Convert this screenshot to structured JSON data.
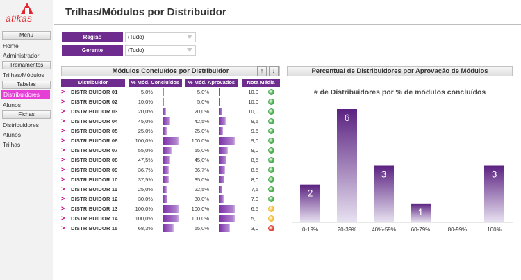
{
  "app": {
    "logo_text": "atikas",
    "title": "Trilhas/Módulos por Distribuidor"
  },
  "sidebar": {
    "menu_header": "Menu",
    "menu_items": [
      "Home",
      "Administrador"
    ],
    "treinamentos_header": "Treinamentos",
    "treinamentos_items": [
      "Trilhas/Módulos"
    ],
    "tabelas_header": "Tabelas",
    "tabelas_items": [
      "Distribuidores",
      "Alunos"
    ],
    "fichas_header": "Fichas",
    "fichas_items": [
      "Distribuidores",
      "Alunos",
      "Trilhas"
    ]
  },
  "filters": {
    "regiao": {
      "label": "Região",
      "value": "(Tudo)"
    },
    "gerente": {
      "label": "Gerente",
      "value": "(Tudo)"
    }
  },
  "table": {
    "title": "Módulos Concluídos por Distribuidor",
    "sort_up": "↑",
    "sort_down": "↓",
    "headers": [
      "Distribuidor",
      "% Mód. Concluídos",
      "% Mód. Aprovados",
      "Nota Média"
    ],
    "colors": {
      "green": "#4caf50",
      "yellow": "#f3c03a",
      "red": "#e0473c"
    },
    "rows": [
      {
        "name": "DISTRIBUIDOR 01",
        "concl": "5,0%",
        "concl_v": 5.0,
        "aprov": "5,0%",
        "aprov_v": 5.0,
        "nota": "10,0",
        "status": "green"
      },
      {
        "name": "DISTRIBUIDOR 02",
        "concl": "10,0%",
        "concl_v": 10.0,
        "aprov": "5,0%",
        "aprov_v": 5.0,
        "nota": "10,0",
        "status": "green"
      },
      {
        "name": "DISTRIBUIDOR 03",
        "concl": "20,0%",
        "concl_v": 20.0,
        "aprov": "20,0%",
        "aprov_v": 20.0,
        "nota": "10,0",
        "status": "green"
      },
      {
        "name": "DISTRIBUIDOR 04",
        "concl": "45,0%",
        "concl_v": 45.0,
        "aprov": "42,5%",
        "aprov_v": 42.5,
        "nota": "9,5",
        "status": "green"
      },
      {
        "name": "DISTRIBUIDOR 05",
        "concl": "25,0%",
        "concl_v": 25.0,
        "aprov": "25,0%",
        "aprov_v": 25.0,
        "nota": "9,5",
        "status": "green"
      },
      {
        "name": "DISTRIBUIDOR 06",
        "concl": "100,0%",
        "concl_v": 100.0,
        "aprov": "100,0%",
        "aprov_v": 100.0,
        "nota": "9,0",
        "status": "green"
      },
      {
        "name": "DISTRIBUIDOR 07",
        "concl": "55,0%",
        "concl_v": 55.0,
        "aprov": "55,0%",
        "aprov_v": 55.0,
        "nota": "9,0",
        "status": "green"
      },
      {
        "name": "DISTRIBUIDOR 08",
        "concl": "47,5%",
        "concl_v": 47.5,
        "aprov": "45,0%",
        "aprov_v": 45.0,
        "nota": "8,5",
        "status": "green"
      },
      {
        "name": "DISTRIBUIDOR 09",
        "concl": "36,7%",
        "concl_v": 36.7,
        "aprov": "36,7%",
        "aprov_v": 36.7,
        "nota": "8,5",
        "status": "green"
      },
      {
        "name": "DISTRIBUIDOR 10",
        "concl": "37,5%",
        "concl_v": 37.5,
        "aprov": "35,0%",
        "aprov_v": 35.0,
        "nota": "8,0",
        "status": "green"
      },
      {
        "name": "DISTRIBUIDOR 11",
        "concl": "25,0%",
        "concl_v": 25.0,
        "aprov": "22,5%",
        "aprov_v": 22.5,
        "nota": "7,5",
        "status": "green"
      },
      {
        "name": "DISTRIBUIDOR 12",
        "concl": "30,0%",
        "concl_v": 30.0,
        "aprov": "30,0%",
        "aprov_v": 30.0,
        "nota": "7,0",
        "status": "green"
      },
      {
        "name": "DISTRIBUIDOR 13",
        "concl": "100,0%",
        "concl_v": 100.0,
        "aprov": "100,0%",
        "aprov_v": 100.0,
        "nota": "6,5",
        "status": "yellow"
      },
      {
        "name": "DISTRIBUIDOR 14",
        "concl": "100,0%",
        "concl_v": 100.0,
        "aprov": "100,0%",
        "aprov_v": 100.0,
        "nota": "5,0",
        "status": "yellow"
      },
      {
        "name": "DISTRIBUIDOR 15",
        "concl": "68,3%",
        "concl_v": 68.3,
        "aprov": "65,0%",
        "aprov_v": 65.0,
        "nota": "3,0",
        "status": "red"
      }
    ]
  },
  "chart_panel": {
    "title": "Percentual de Distribuidores por Aprovação de Módulos"
  },
  "chart_data": {
    "type": "bar",
    "title": "# de Distribuidores por % de módulos concluídos",
    "categories": [
      "0-19%",
      "20-39%",
      "40%-59%",
      "60-79%",
      "80-99%",
      "100%"
    ],
    "values": [
      2,
      6,
      3,
      1,
      0,
      3
    ],
    "ylim": [
      0,
      6
    ],
    "grid": false,
    "bar_color_top": "#5b2281",
    "bar_color_bottom": "#e8e2f1"
  }
}
